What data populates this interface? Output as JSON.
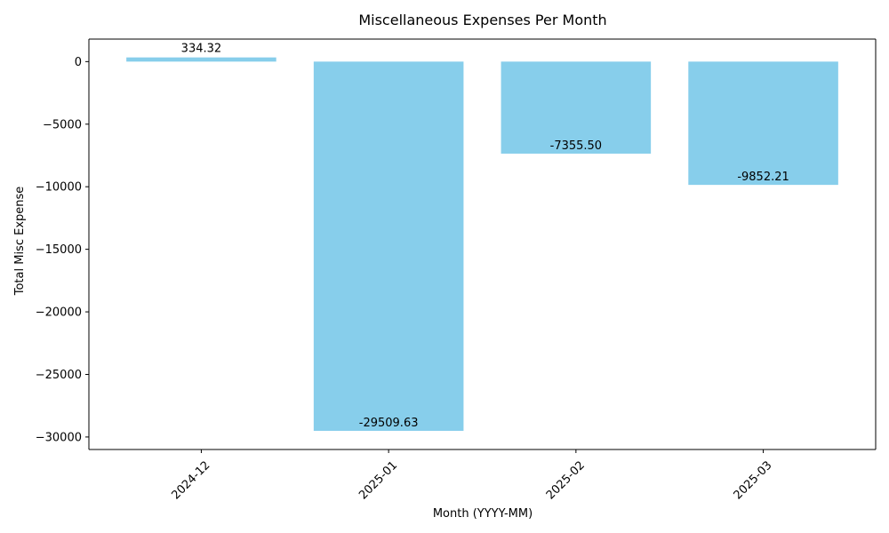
{
  "chart_data": {
    "type": "bar",
    "title": "Miscellaneous Expenses Per Month",
    "xlabel": "Month (YYYY-MM)",
    "ylabel": "Total Misc Expense",
    "categories": [
      "2024-12",
      "2025-01",
      "2025-02",
      "2025-03"
    ],
    "values": [
      334.32,
      -29509.63,
      -7355.5,
      -9852.21
    ],
    "data_labels": [
      "334.32",
      "-29509.63",
      "-7355.50",
      "-9852.21"
    ],
    "ylim": [
      -31000,
      1800
    ],
    "yticks": [
      0,
      -5000,
      -10000,
      -15000,
      -20000,
      -25000,
      -30000
    ],
    "ytick_labels": [
      "0",
      "−5000",
      "−10000",
      "−15000",
      "−20000",
      "−25000",
      "−30000"
    ],
    "bar_color": "#87CEEB",
    "grid": false,
    "x_tick_rotation_deg": 45
  }
}
